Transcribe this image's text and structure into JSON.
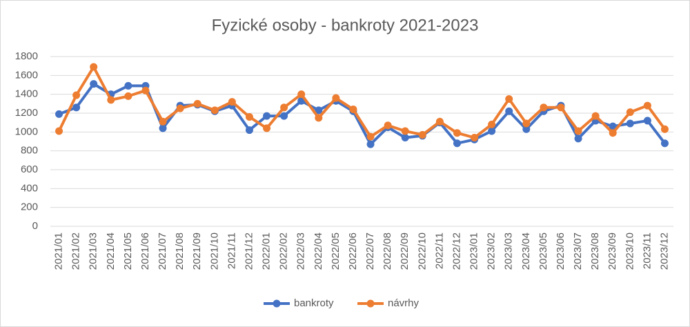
{
  "chart_data": {
    "type": "line",
    "title": "Fyzické osoby - bankroty 2021-2023",
    "categories": [
      "2021/01",
      "2021/02",
      "2021/03",
      "2021/04",
      "2021/05",
      "2021/06",
      "2021/07",
      "2021/08",
      "2021/09",
      "2021/10",
      "2021/11",
      "2021/12",
      "2022/01",
      "2022/02",
      "2022/03",
      "2022/04",
      "2022/05",
      "2022/06",
      "2022/07",
      "2022/08",
      "2022/09",
      "2022/10",
      "2022/11",
      "2022/12",
      "2023/01",
      "2023/02",
      "2023/03",
      "2023/04",
      "2023/05",
      "2023/06",
      "2023/07",
      "2023/08",
      "2023/09",
      "2023/10",
      "2023/11",
      "2023/12"
    ],
    "series": [
      {
        "name": "bankroty",
        "color": "#4472c4",
        "values": [
          1190,
          1260,
          1510,
          1400,
          1490,
          1490,
          1040,
          1280,
          1290,
          1220,
          1280,
          1020,
          1170,
          1170,
          1330,
          1230,
          1330,
          1220,
          870,
          1050,
          940,
          960,
          1100,
          880,
          920,
          1010,
          1220,
          1030,
          1220,
          1280,
          930,
          1120,
          1060,
          1090,
          1120,
          880
        ]
      },
      {
        "name": "návrhy",
        "color": "#ed7d31",
        "values": [
          1010,
          1390,
          1690,
          1340,
          1380,
          1440,
          1110,
          1250,
          1300,
          1230,
          1320,
          1160,
          1040,
          1260,
          1400,
          1150,
          1360,
          1240,
          950,
          1070,
          1010,
          970,
          1110,
          990,
          940,
          1080,
          1350,
          1090,
          1260,
          1260,
          1010,
          1170,
          990,
          1210,
          1280,
          1030
        ]
      }
    ],
    "ylim": [
      0,
      1800
    ],
    "yticks": [
      0,
      200,
      400,
      600,
      800,
      1000,
      1200,
      1400,
      1600,
      1800
    ],
    "grid": true,
    "legend": "bottom"
  }
}
